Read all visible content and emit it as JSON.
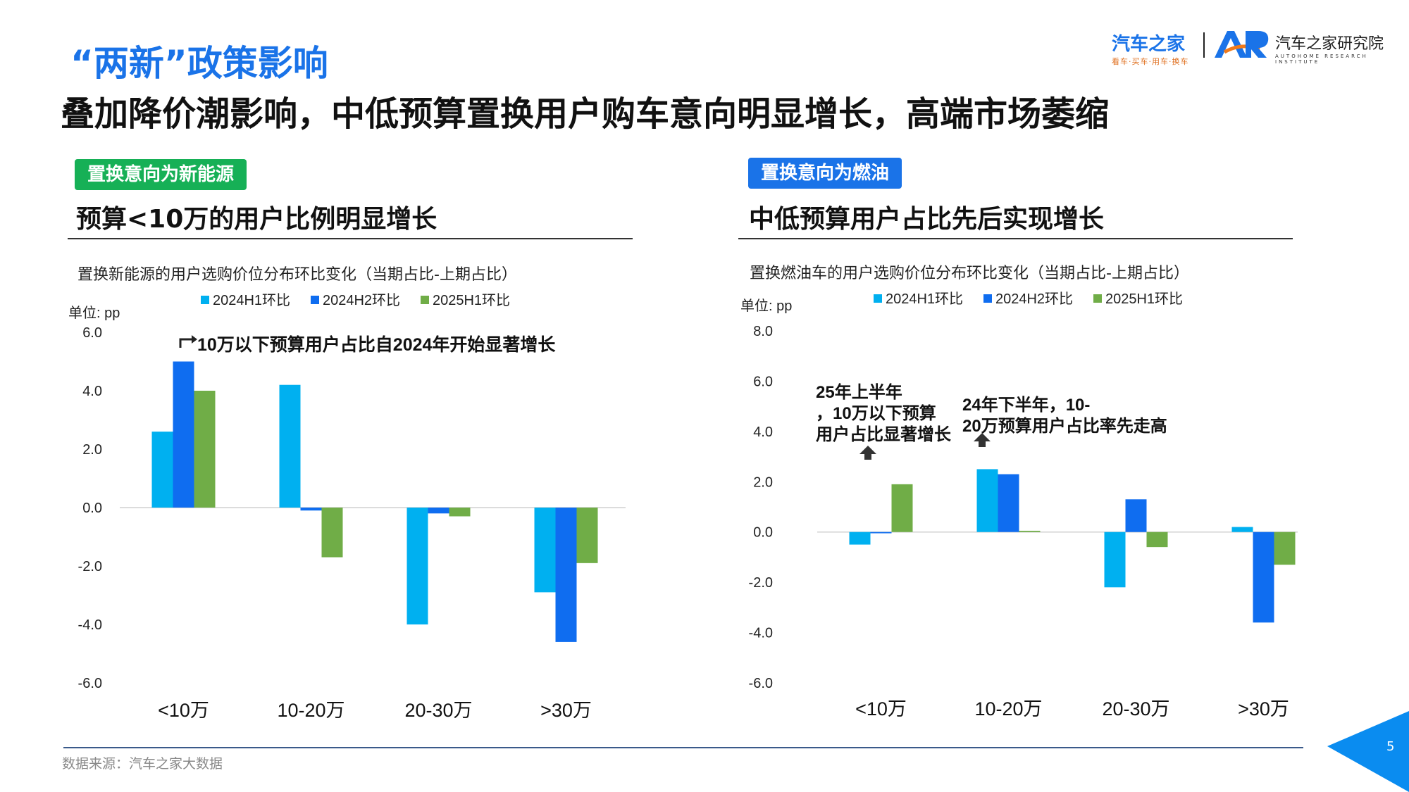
{
  "title": "“两新”政策影响",
  "subtitle": "叠加降价潮影响，中低预算置换用户购车意向明显增长，高端市场萎缩",
  "logo": {
    "brand_main": "汽车之家",
    "brand_tagline": "看车·买车·用车·换车",
    "institute_name": "汽车之家研究院",
    "institute_en": "AUTOHOME RESEARCH INSTITUTE"
  },
  "left_panel": {
    "tag": "置换意向为新能源",
    "heading": "预算<10万的用户比例明显增长"
  },
  "right_panel": {
    "tag": "置换意向为燃油",
    "heading": "中低预算用户占比先后实现增长"
  },
  "chart_data": [
    {
      "type": "bar",
      "title": "置换新能源的用户选购价位分布环比变化（当期占比-上期占比）",
      "unit_label": "单位: pp",
      "categories": [
        "<10万",
        "10-20万",
        "20-30万",
        ">30万"
      ],
      "series": [
        {
          "name": "2024H1环比",
          "color": "#00b0f0",
          "values": [
            2.6,
            4.2,
            -4.0,
            -2.9
          ]
        },
        {
          "name": "2024H2环比",
          "color": "#0f6df0",
          "values": [
            5.0,
            -0.1,
            -0.2,
            -4.6
          ]
        },
        {
          "name": "2025H1环比",
          "color": "#70ad47",
          "values": [
            4.0,
            -1.7,
            -0.3,
            -1.9
          ]
        }
      ],
      "ylim": [
        -6.0,
        6.0
      ],
      "yticks": [
        "6.0",
        "4.0",
        "2.0",
        "0.0",
        "-2.0",
        "-4.0",
        "-6.0"
      ],
      "legend_position": "top",
      "grid": false,
      "annotations": [
        {
          "text": "10万以下预算用户占比自2024年开始显著增长"
        }
      ]
    },
    {
      "type": "bar",
      "title": "置换燃油车的用户选购价位分布环比变化（当期占比-上期占比）",
      "unit_label": "单位: pp",
      "categories": [
        "<10万",
        "10-20万",
        "20-30万",
        ">30万"
      ],
      "series": [
        {
          "name": "2024H1环比",
          "color": "#00b0f0",
          "values": [
            -0.5,
            2.5,
            -2.2,
            0.2
          ]
        },
        {
          "name": "2024H2环比",
          "color": "#0f6df0",
          "values": [
            -0.05,
            2.3,
            1.3,
            -3.6
          ]
        },
        {
          "name": "2025H1环比",
          "color": "#70ad47",
          "values": [
            1.9,
            0.05,
            -0.6,
            -1.3
          ]
        }
      ],
      "ylim": [
        -6.0,
        8.0
      ],
      "yticks": [
        "8.0",
        "6.0",
        "4.0",
        "2.0",
        "0.0",
        "-2.0",
        "-4.0",
        "-6.0"
      ],
      "legend_position": "top",
      "grid": false,
      "annotations": [
        {
          "text": "25年上半年，10万以下预算用户占比显著增长"
        },
        {
          "text": "24年下半年，10-20万预算用户占比率先走高"
        }
      ]
    }
  ],
  "source": "数据来源：汽车之家大数据",
  "page_number": "5"
}
